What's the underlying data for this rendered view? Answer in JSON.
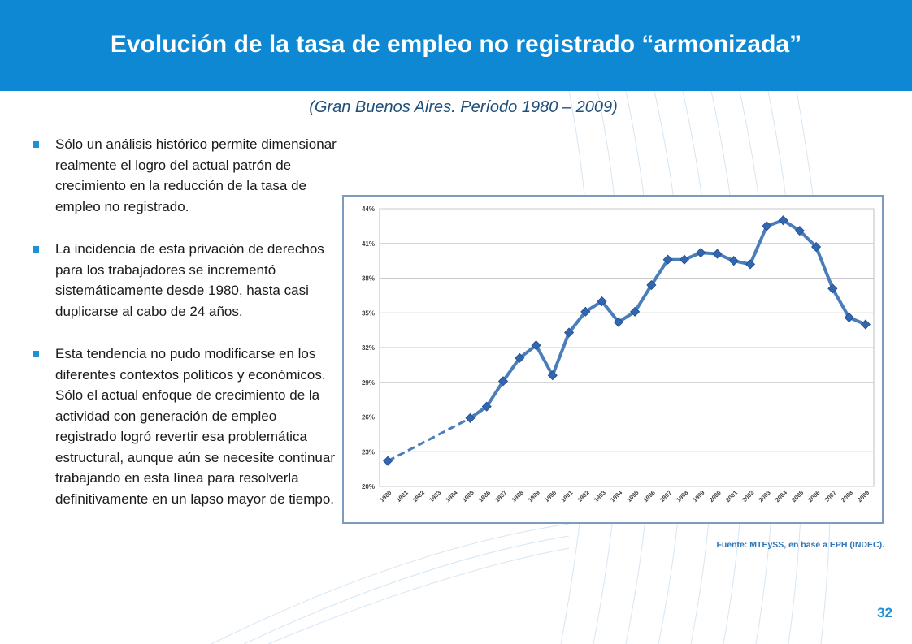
{
  "slide": {
    "title": "Evolución de la tasa de empleo no registrado “armonizada”",
    "subtitle": "(Gran Buenos Aires. Período 1980 – 2009)",
    "bullets": [
      "Sólo un análisis histórico permite dimensionar realmente el  logro del actual patrón de crecimiento en la reducción de la tasa de empleo no registrado.",
      "La incidencia de esta privación de derechos para los trabajadores se incrementó sistemáticamente desde 1980, hasta casi duplicarse al cabo de 24 años.",
      "Esta tendencia no pudo modificarse en los diferentes contextos políticos y económicos. Sólo el actual enfoque de crecimiento de la actividad con generación de empleo registrado logró revertir esa problemática estructural, aunque aún se necesite continuar trabajando en esta línea para resolverla definitivamente en un lapso mayor de tiempo."
    ],
    "source": "Fuente: MTEySS, en base a EPH (INDEC).",
    "page_number": "32",
    "colors": {
      "header": "#0e88d3",
      "series": "#4a7ebb",
      "marker": "#3366b0",
      "bullet": "#1f8fd6"
    }
  },
  "chart_data": {
    "type": "line",
    "x": [
      "1980",
      "1981",
      "1982",
      "1983",
      "1984",
      "1985",
      "1986",
      "1987",
      "1988",
      "1989",
      "1990",
      "1991",
      "1992",
      "1993",
      "1994",
      "1995",
      "1996",
      "1997",
      "1998",
      "1999",
      "2000",
      "2001",
      "2002",
      "2003",
      "2004",
      "2005",
      "2006",
      "2007",
      "2008",
      "2009"
    ],
    "values": [
      22.2,
      null,
      null,
      null,
      null,
      25.9,
      26.9,
      29.1,
      31.1,
      32.2,
      29.6,
      33.3,
      35.1,
      36.0,
      34.2,
      35.1,
      37.4,
      39.6,
      39.6,
      40.2,
      40.1,
      39.5,
      39.2,
      42.5,
      43.0,
      42.1,
      40.7,
      37.1,
      34.6,
      34.0
    ],
    "dashed_segment": {
      "from": "1980",
      "to": "1985"
    },
    "yticks": [
      "20%",
      "23%",
      "26%",
      "29%",
      "32%",
      "35%",
      "38%",
      "41%",
      "44%"
    ],
    "ylim": [
      20,
      44
    ],
    "grid": true,
    "title": "",
    "xlabel": "",
    "ylabel": ""
  }
}
